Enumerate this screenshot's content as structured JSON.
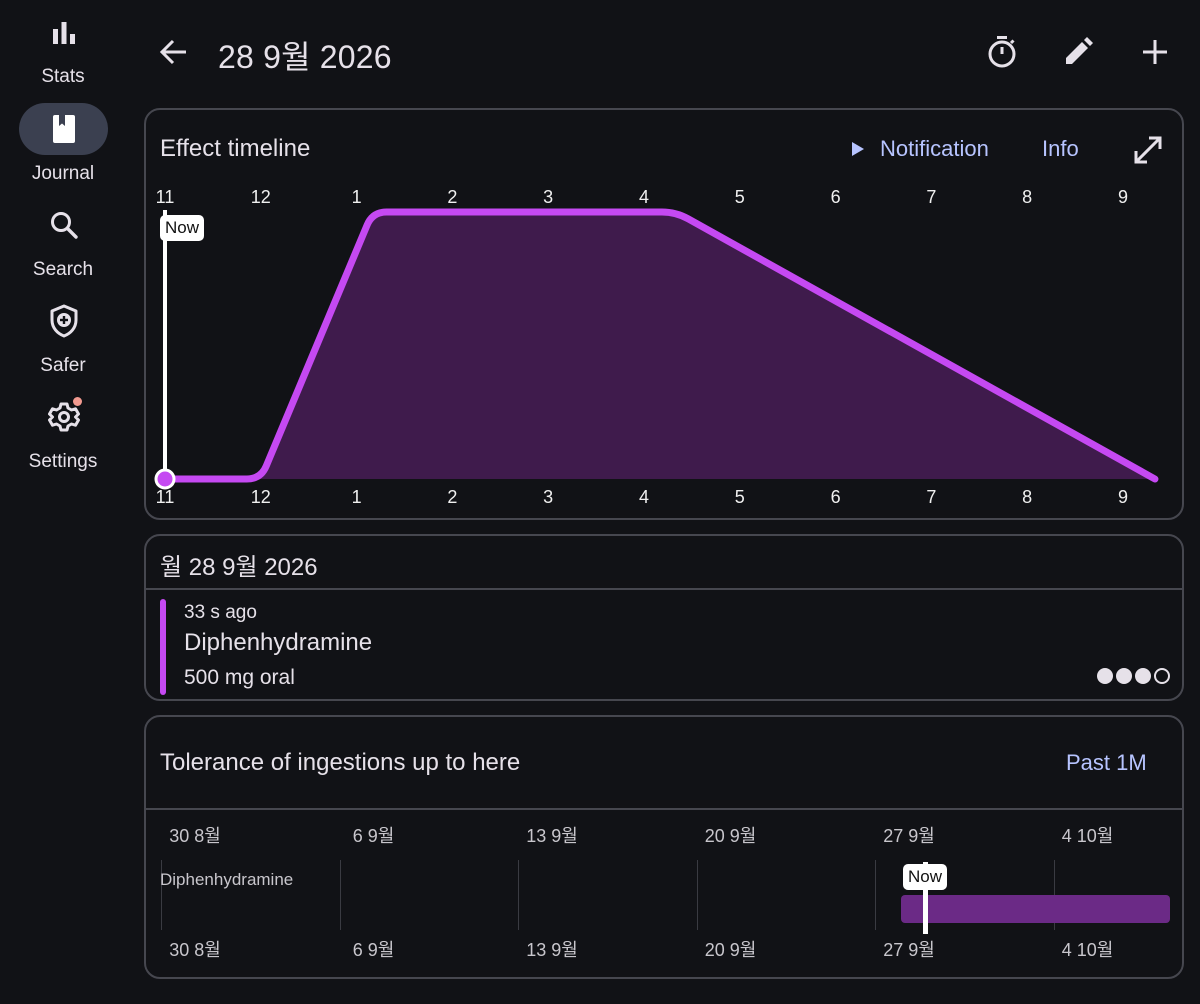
{
  "nav": {
    "items": [
      {
        "label": "Stats",
        "icon": "bar-chart-icon",
        "active": false
      },
      {
        "label": "Journal",
        "icon": "journal-icon",
        "active": true
      },
      {
        "label": "Search",
        "icon": "search-icon",
        "active": false
      },
      {
        "label": "Safer",
        "icon": "shield-plus-icon",
        "active": false
      },
      {
        "label": "Settings",
        "icon": "gear-icon",
        "active": false,
        "badge": true
      }
    ]
  },
  "header": {
    "title": "28 9월 2026",
    "actions": [
      "timer-icon",
      "edit-icon",
      "add-icon"
    ]
  },
  "effect_timeline": {
    "title": "Effect timeline",
    "notification_label": "Notification",
    "info_label": "Info",
    "now_label": "Now",
    "color": "#c549f2",
    "fill_color": "#3f1b4c",
    "chart_data": {
      "type": "area",
      "x_ticks": [
        "11",
        "12",
        "1",
        "2",
        "3",
        "4",
        "5",
        "6",
        "7",
        "8",
        "9"
      ],
      "series": [
        {
          "name": "Diphenhydramine",
          "points": [
            {
              "t": "11:00",
              "level": 0
            },
            {
              "t": "12:00",
              "level": 0
            },
            {
              "t": "13:10",
              "level": 1
            },
            {
              "t": "16:20",
              "level": 1
            },
            {
              "t": "21:20",
              "level": 0
            }
          ]
        }
      ],
      "now": "11:00",
      "ylim": [
        0,
        1
      ]
    }
  },
  "experience": {
    "date_header": "월 28 9월 2026",
    "ingestion": {
      "time_ago": "33 s ago",
      "substance": "Diphenhydramine",
      "dose": "500 mg oral",
      "strength_level": 3,
      "strength_max": 4,
      "color": "#c549f2"
    }
  },
  "tolerance": {
    "title": "Tolerance of ingestions up to here",
    "range_button": "Past 1M",
    "now_label": "Now",
    "bar_color": "#6b2a86",
    "chart_data": {
      "type": "bar",
      "x_ticks": [
        "30 8월",
        "6 9월",
        "13 9월",
        "20 9월",
        "27 9월",
        "4 10월"
      ],
      "rows": [
        {
          "name": "Diphenhydramine",
          "start": "28 9월",
          "end": "5 10월"
        }
      ],
      "now": "28 9월"
    }
  }
}
